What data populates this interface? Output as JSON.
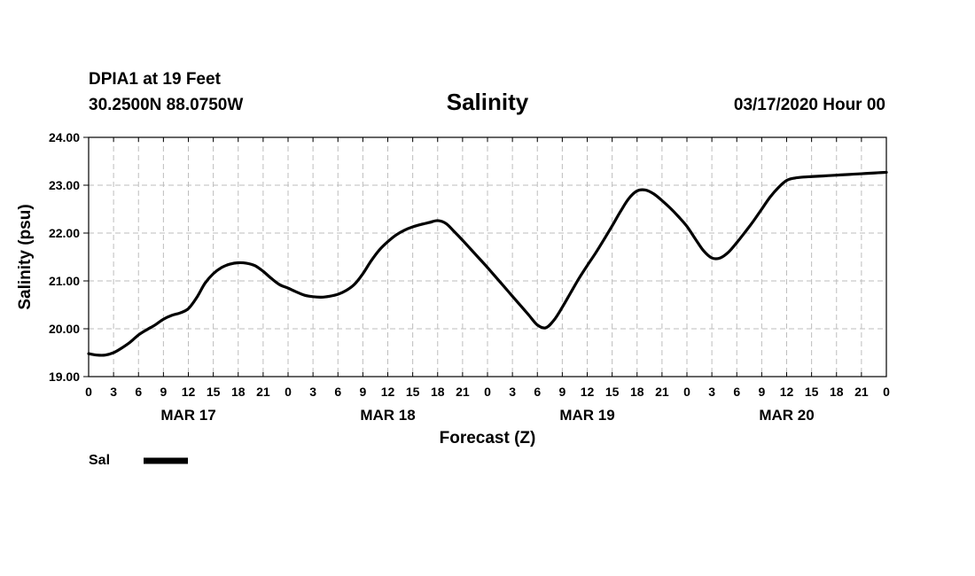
{
  "header": {
    "station": "DPIA1 at 19 Feet",
    "location": "30.2500N 88.0750W",
    "title": "Salinity",
    "datetime": "03/17/2020 Hour 00"
  },
  "chart_data": {
    "type": "line",
    "title": "Salinity",
    "xlabel": "Forecast (Z)",
    "ylabel": "Salinity (psu)",
    "ylim": [
      19.0,
      24.0
    ],
    "y_ticks": [
      "19.00",
      "20.00",
      "21.00",
      "22.00",
      "23.00",
      "24.00"
    ],
    "xlim": [
      0,
      96
    ],
    "x_units": "hours from 03/17/2020 00Z",
    "x_ticks": [
      {
        "hour": 0,
        "label": "0"
      },
      {
        "hour": 3,
        "label": "3"
      },
      {
        "hour": 6,
        "label": "6"
      },
      {
        "hour": 9,
        "label": "9"
      },
      {
        "hour": 12,
        "label": "12"
      },
      {
        "hour": 15,
        "label": "15"
      },
      {
        "hour": 18,
        "label": "18"
      },
      {
        "hour": 21,
        "label": "21"
      },
      {
        "hour": 24,
        "label": "0"
      },
      {
        "hour": 27,
        "label": "3"
      },
      {
        "hour": 30,
        "label": "6"
      },
      {
        "hour": 33,
        "label": "9"
      },
      {
        "hour": 36,
        "label": "12"
      },
      {
        "hour": 39,
        "label": "15"
      },
      {
        "hour": 42,
        "label": "18"
      },
      {
        "hour": 45,
        "label": "21"
      },
      {
        "hour": 48,
        "label": "0"
      },
      {
        "hour": 51,
        "label": "3"
      },
      {
        "hour": 54,
        "label": "6"
      },
      {
        "hour": 57,
        "label": "9"
      },
      {
        "hour": 60,
        "label": "12"
      },
      {
        "hour": 63,
        "label": "15"
      },
      {
        "hour": 66,
        "label": "18"
      },
      {
        "hour": 69,
        "label": "21"
      },
      {
        "hour": 72,
        "label": "0"
      },
      {
        "hour": 75,
        "label": "3"
      },
      {
        "hour": 78,
        "label": "6"
      },
      {
        "hour": 81,
        "label": "9"
      },
      {
        "hour": 84,
        "label": "12"
      },
      {
        "hour": 87,
        "label": "15"
      },
      {
        "hour": 90,
        "label": "18"
      },
      {
        "hour": 93,
        "label": "21"
      },
      {
        "hour": 96,
        "label": "0"
      }
    ],
    "day_labels": [
      {
        "hour": 12,
        "label": "MAR 17"
      },
      {
        "hour": 36,
        "label": "MAR 18"
      },
      {
        "hour": 60,
        "label": "MAR 19"
      },
      {
        "hour": 84,
        "label": "MAR 20"
      }
    ],
    "grid": true,
    "legend": {
      "placement": "bottom-left"
    },
    "series": [
      {
        "name": "Sal",
        "color": "#000000",
        "x": [
          0,
          1,
          2,
          3,
          4,
          5,
          6,
          7,
          8,
          9,
          10,
          11,
          12,
          13,
          14,
          15,
          16,
          17,
          18,
          19,
          20,
          21,
          22,
          23,
          24,
          25,
          26,
          27,
          28,
          29,
          30,
          31,
          32,
          33,
          34,
          35,
          36,
          37,
          38,
          39,
          40,
          41,
          42,
          43,
          44,
          45,
          46,
          47,
          48,
          49,
          50,
          51,
          52,
          53,
          54,
          55,
          56,
          57,
          58,
          59,
          60,
          61,
          62,
          63,
          64,
          65,
          66,
          67,
          68,
          69,
          70,
          71,
          72,
          73,
          74,
          75,
          76,
          77,
          78,
          79,
          80,
          81,
          82,
          83,
          84,
          85,
          86,
          87,
          88,
          89,
          90,
          91,
          92,
          93,
          94,
          95,
          96
        ],
        "values": [
          19.48,
          19.45,
          19.45,
          19.5,
          19.6,
          19.72,
          19.87,
          19.98,
          20.08,
          20.2,
          20.28,
          20.33,
          20.42,
          20.65,
          20.95,
          21.15,
          21.28,
          21.35,
          21.38,
          21.37,
          21.32,
          21.2,
          21.05,
          20.92,
          20.85,
          20.77,
          20.7,
          20.67,
          20.66,
          20.68,
          20.72,
          20.8,
          20.93,
          21.15,
          21.42,
          21.65,
          21.82,
          21.96,
          22.06,
          22.13,
          22.18,
          22.22,
          22.26,
          22.2,
          22.03,
          21.85,
          21.66,
          21.47,
          21.28,
          21.08,
          20.88,
          20.68,
          20.48,
          20.28,
          20.08,
          20.02,
          20.18,
          20.45,
          20.75,
          21.05,
          21.32,
          21.58,
          21.86,
          22.15,
          22.45,
          22.72,
          22.88,
          22.9,
          22.82,
          22.68,
          22.52,
          22.34,
          22.14,
          21.88,
          21.63,
          21.48,
          21.48,
          21.6,
          21.8,
          22.02,
          22.25,
          22.5,
          22.75,
          22.95,
          23.1,
          23.15,
          23.17,
          23.18,
          23.19,
          23.2,
          23.21,
          23.22,
          23.23,
          23.24,
          23.25,
          23.26,
          23.27
        ]
      }
    ]
  }
}
